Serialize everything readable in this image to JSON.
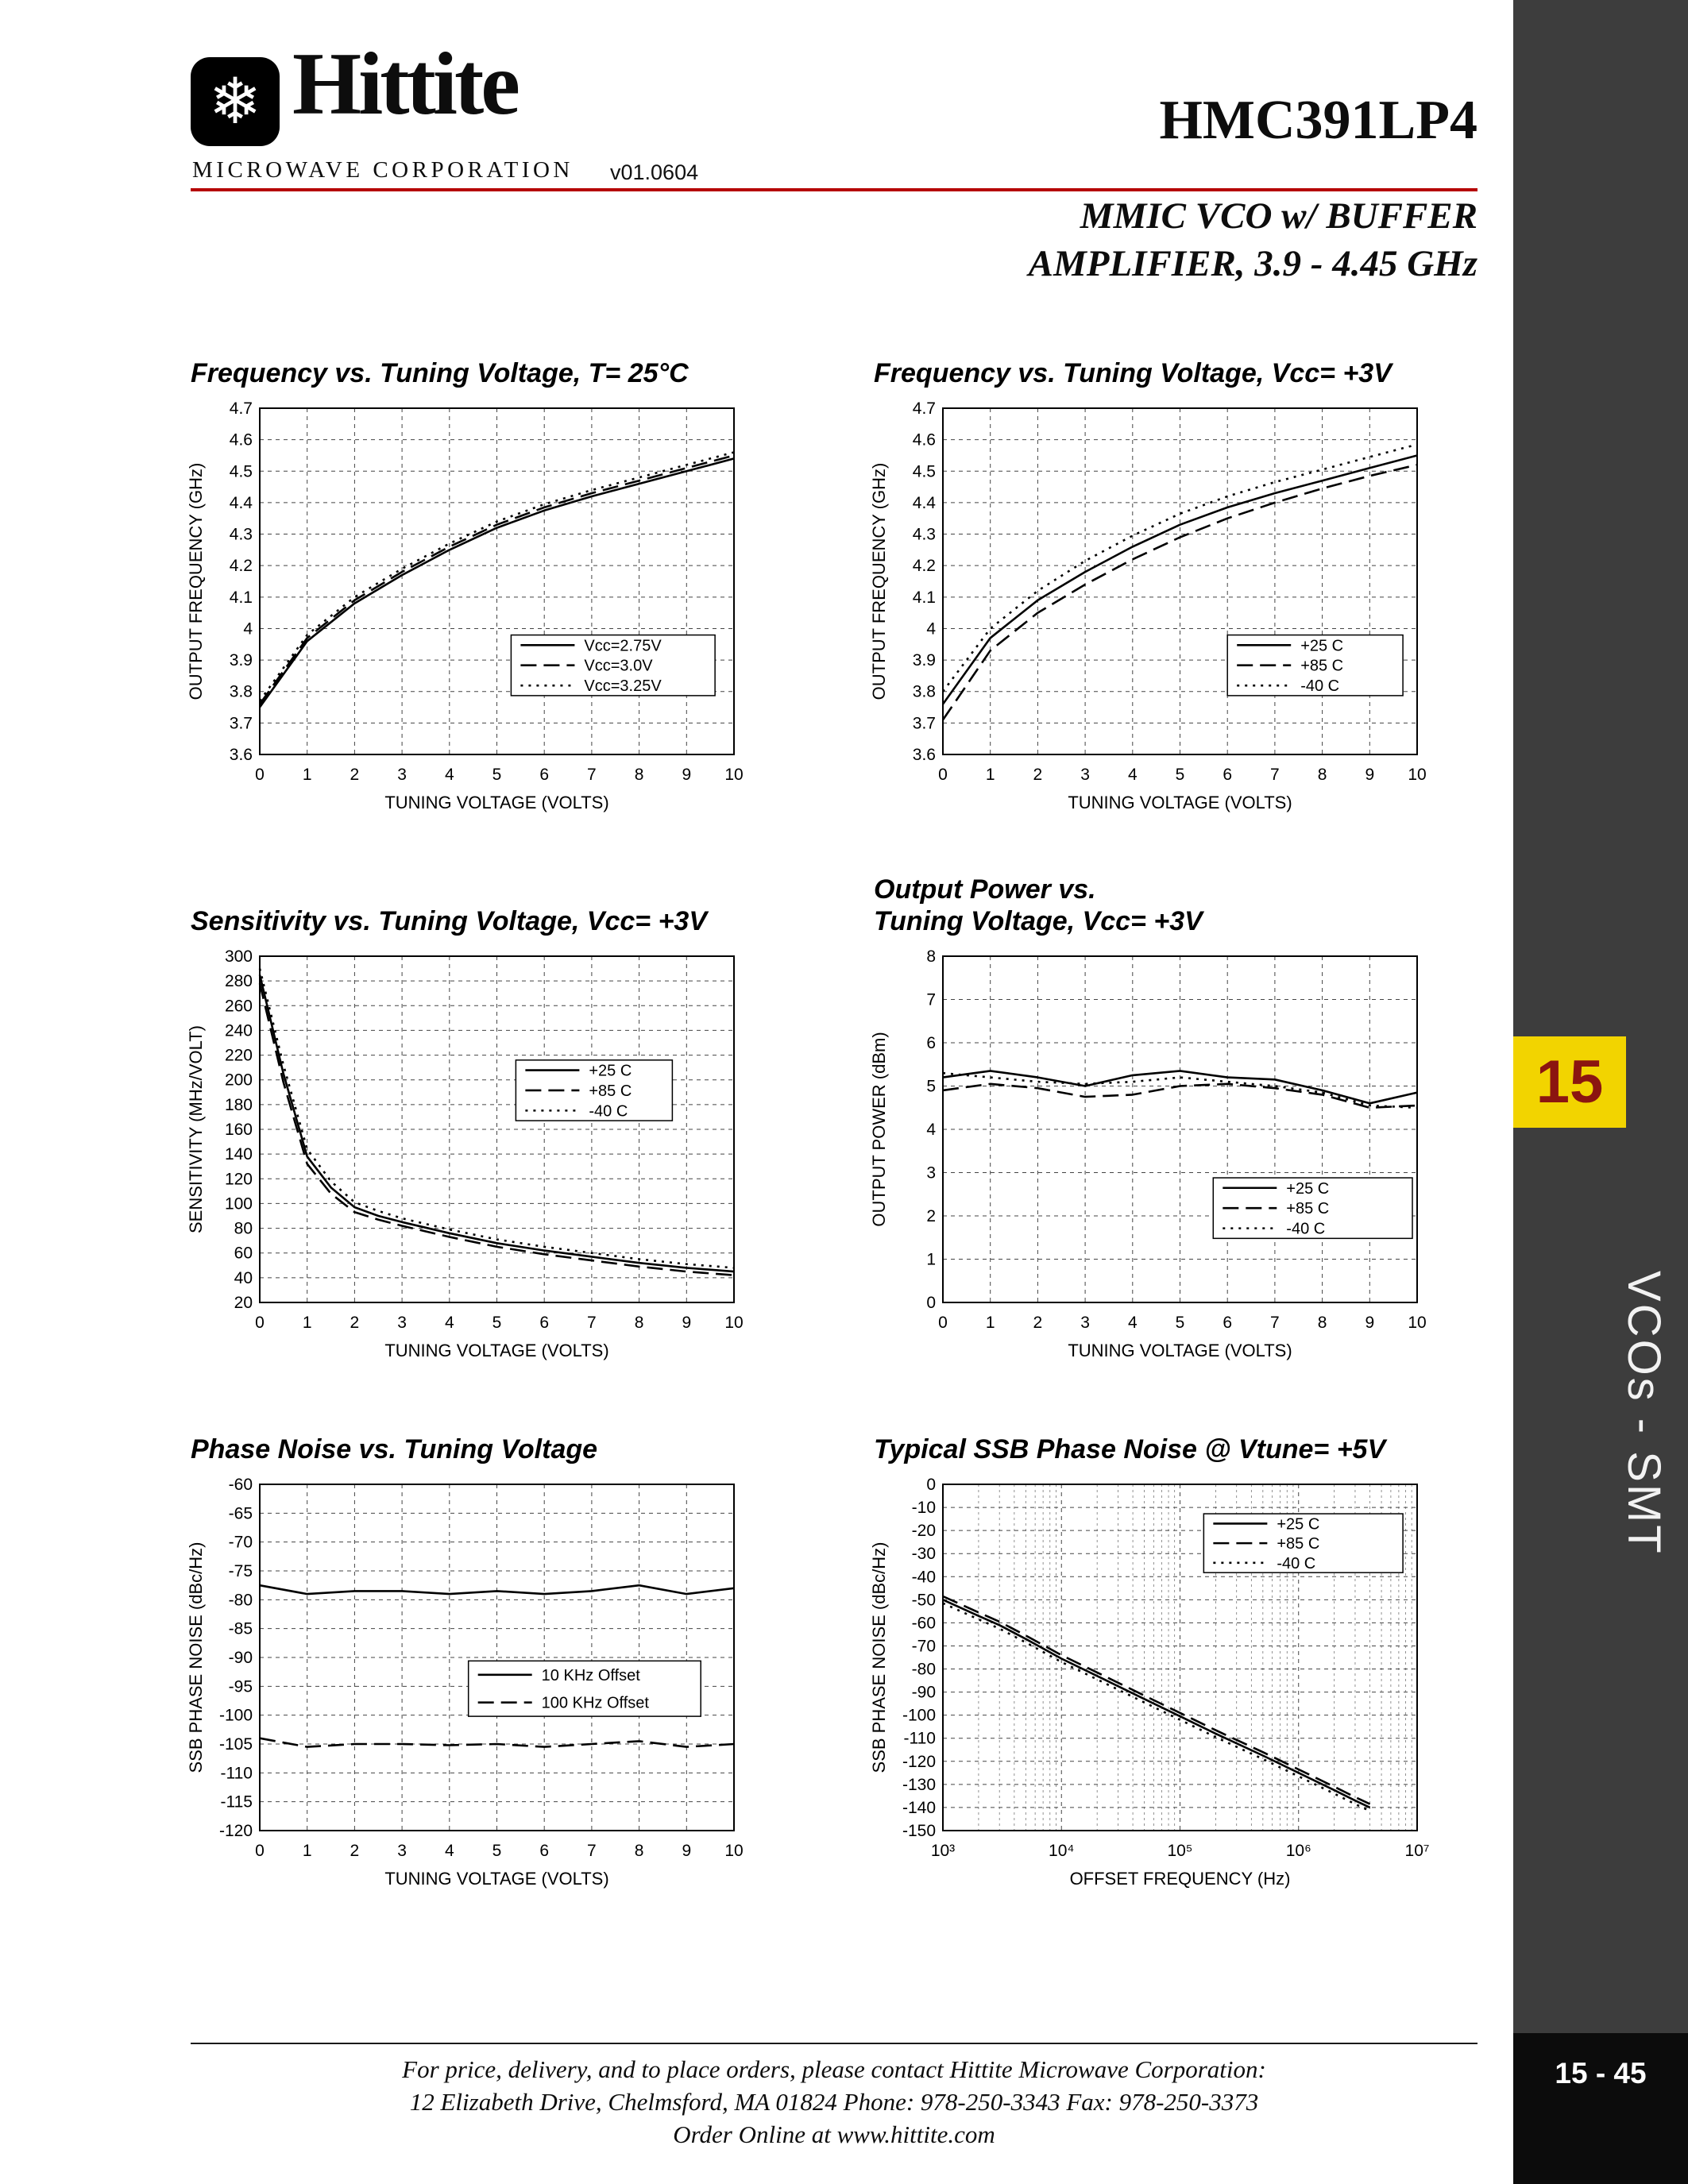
{
  "header": {
    "logo_icon": "❄",
    "logo_name": "Hittite",
    "logo_subtitle": "MICROWAVE CORPORATION",
    "version": "v01.0604",
    "part_number": "HMC391LP4",
    "subtitle": "MMIC VCO w/ BUFFER\nAMPLIFIER, 3.9 - 4.45 GHz"
  },
  "sidebar": {
    "tab_number": "15",
    "section_label": "VCOs - SMT",
    "page_number": "15 - 45"
  },
  "footer": {
    "line1": "For price, delivery, and to place orders, please contact Hittite Microwave Corporation:",
    "line2": "12 Elizabeth Drive, Chelmsford, MA 01824 Phone: 978-250-3343  Fax: 978-250-3373",
    "line3": "Order Online at www.hittite.com"
  },
  "colors": {
    "accent_red": "#b50000",
    "tab_yellow": "#f2d400",
    "tab_text": "#8b1510",
    "sidebar_gray": "#3d3d3d"
  },
  "chart_data": [
    {
      "type": "line",
      "title": "Frequency vs. Tuning Voltage, T= 25°C",
      "xlabel": "TUNING VOLTAGE (VOLTS)",
      "ylabel": "OUTPUT  FREQUENCY (GHz)",
      "xlim": [
        0,
        10
      ],
      "ylim": [
        3.6,
        4.7
      ],
      "xticks": [
        0,
        1,
        2,
        3,
        4,
        5,
        6,
        7,
        8,
        9,
        10
      ],
      "xtick_labels": [
        "0",
        "1",
        "2",
        "3",
        "4",
        "5",
        "6",
        "7",
        "8",
        "9",
        "10"
      ],
      "yticks": [
        3.6,
        3.7,
        3.8,
        3.9,
        4.0,
        4.1,
        4.2,
        4.3,
        4.4,
        4.5,
        4.6,
        4.7
      ],
      "ytick_labels": [
        "3.6",
        "3.7",
        "3.8",
        "3.9",
        "4",
        "4.1",
        "4.2",
        "4.3",
        "4.4",
        "4.5",
        "4.6",
        "4.7"
      ],
      "legend": {
        "x": 0.53,
        "y": 0.655,
        "w": 0.43,
        "h": 0.175,
        "entries": [
          {
            "label": "Vcc=2.75V",
            "dash": "solid"
          },
          {
            "label": "Vcc=3.0V",
            "dash": "dash"
          },
          {
            "label": "Vcc=3.25V",
            "dash": "dot"
          }
        ]
      },
      "series": [
        {
          "name": "Vcc=2.75V",
          "dash": "solid",
          "x": [
            0,
            1,
            2,
            3,
            4,
            5,
            6,
            7,
            8,
            9,
            10
          ],
          "y": [
            3.75,
            3.96,
            4.08,
            4.17,
            4.25,
            4.32,
            4.375,
            4.42,
            4.46,
            4.5,
            4.54
          ]
        },
        {
          "name": "Vcc=3.0V",
          "dash": "dash",
          "x": [
            0,
            1,
            2,
            3,
            4,
            5,
            6,
            7,
            8,
            9,
            10
          ],
          "y": [
            3.76,
            3.97,
            4.09,
            4.18,
            4.26,
            4.33,
            4.385,
            4.43,
            4.47,
            4.51,
            4.55
          ]
        },
        {
          "name": "Vcc=3.25V",
          "dash": "dot",
          "x": [
            0,
            1,
            2,
            3,
            4,
            5,
            6,
            7,
            8,
            9,
            10
          ],
          "y": [
            3.77,
            3.98,
            4.1,
            4.19,
            4.27,
            4.34,
            4.395,
            4.44,
            4.48,
            4.52,
            4.56
          ]
        }
      ]
    },
    {
      "type": "line",
      "title": "Frequency vs. Tuning Voltage, Vcc= +3V",
      "xlabel": "TUNING VOLTAGE (VOLTS)",
      "ylabel": "OUTPUT  FREQUENCY (GHz)",
      "xlim": [
        0,
        10
      ],
      "ylim": [
        3.6,
        4.7
      ],
      "xticks": [
        0,
        1,
        2,
        3,
        4,
        5,
        6,
        7,
        8,
        9,
        10
      ],
      "xtick_labels": [
        "0",
        "1",
        "2",
        "3",
        "4",
        "5",
        "6",
        "7",
        "8",
        "9",
        "10"
      ],
      "yticks": [
        3.6,
        3.7,
        3.8,
        3.9,
        4.0,
        4.1,
        4.2,
        4.3,
        4.4,
        4.5,
        4.6,
        4.7
      ],
      "ytick_labels": [
        "3.6",
        "3.7",
        "3.8",
        "3.9",
        "4",
        "4.1",
        "4.2",
        "4.3",
        "4.4",
        "4.5",
        "4.6",
        "4.7"
      ],
      "legend": {
        "x": 0.6,
        "y": 0.655,
        "w": 0.37,
        "h": 0.175,
        "entries": [
          {
            "label": "+25 C",
            "dash": "solid"
          },
          {
            "label": "+85 C",
            "dash": "dash"
          },
          {
            "label": "-40 C",
            "dash": "dot"
          }
        ]
      },
      "series": [
        {
          "name": "+25 C",
          "dash": "solid",
          "x": [
            0,
            1,
            2,
            3,
            4,
            5,
            6,
            7,
            8,
            9,
            10
          ],
          "y": [
            3.76,
            3.97,
            4.09,
            4.18,
            4.26,
            4.33,
            4.385,
            4.43,
            4.47,
            4.51,
            4.55
          ]
        },
        {
          "name": "+85 C",
          "dash": "dash",
          "x": [
            0,
            1,
            2,
            3,
            4,
            5,
            6,
            7,
            8,
            9,
            10
          ],
          "y": [
            3.71,
            3.93,
            4.05,
            4.14,
            4.22,
            4.29,
            4.35,
            4.4,
            4.445,
            4.485,
            4.52
          ]
        },
        {
          "name": "-40 C",
          "dash": "dot",
          "x": [
            0,
            1,
            2,
            3,
            4,
            5,
            6,
            7,
            8,
            9,
            10
          ],
          "y": [
            3.8,
            4.0,
            4.12,
            4.215,
            4.295,
            4.365,
            4.42,
            4.465,
            4.505,
            4.545,
            4.585
          ]
        }
      ]
    },
    {
      "type": "line",
      "title": "Sensitivity vs. Tuning Voltage, Vcc= +3V",
      "xlabel": "TUNING VOLTAGE (VOLTS)",
      "ylabel": "SENSITIVITY (MHz/VOLT)",
      "xlim": [
        0,
        10
      ],
      "ylim": [
        20,
        300
      ],
      "xticks": [
        0,
        1,
        2,
        3,
        4,
        5,
        6,
        7,
        8,
        9,
        10
      ],
      "xtick_labels": [
        "0",
        "1",
        "2",
        "3",
        "4",
        "5",
        "6",
        "7",
        "8",
        "9",
        "10"
      ],
      "yticks": [
        20,
        40,
        60,
        80,
        100,
        120,
        140,
        160,
        180,
        200,
        220,
        240,
        260,
        280,
        300
      ],
      "ytick_labels": [
        "20",
        "40",
        "60",
        "80",
        "100",
        "120",
        "140",
        "160",
        "180",
        "200",
        "220",
        "240",
        "260",
        "280",
        "300"
      ],
      "legend": {
        "x": 0.54,
        "y": 0.3,
        "w": 0.33,
        "h": 0.175,
        "entries": [
          {
            "label": "+25 C",
            "dash": "solid"
          },
          {
            "label": "+85 C",
            "dash": "dash"
          },
          {
            "label": "-40 C",
            "dash": "dot"
          }
        ]
      },
      "series": [
        {
          "name": "+25 C",
          "dash": "solid",
          "x": [
            0,
            0.5,
            1,
            1.5,
            2,
            2.5,
            3,
            4,
            5,
            6,
            7,
            8,
            9,
            10
          ],
          "y": [
            285,
            205,
            138,
            113,
            97,
            90,
            85,
            76,
            68,
            62,
            57,
            52,
            48,
            45
          ]
        },
        {
          "name": "+85 C",
          "dash": "dash",
          "x": [
            0,
            0.5,
            1,
            1.5,
            2,
            2.5,
            3,
            4,
            5,
            6,
            7,
            8,
            9,
            10
          ],
          "y": [
            278,
            198,
            132,
            108,
            93,
            87,
            82,
            73,
            65,
            59,
            54,
            49,
            45,
            42
          ]
        },
        {
          "name": "-40 C",
          "dash": "dot",
          "x": [
            0,
            0.5,
            1,
            1.5,
            2,
            2.5,
            3,
            4,
            5,
            6,
            7,
            8,
            9,
            10
          ],
          "y": [
            290,
            212,
            144,
            118,
            101,
            94,
            88,
            79,
            71,
            65,
            60,
            55,
            51,
            48
          ]
        }
      ]
    },
    {
      "type": "line",
      "title": "Output Power vs.\nTuning Voltage, Vcc= +3V",
      "xlabel": "TUNING VOLTAGE (VOLTS)",
      "ylabel": "OUTPUT POWER (dBm)",
      "xlim": [
        0,
        10
      ],
      "ylim": [
        0,
        8
      ],
      "xticks": [
        0,
        1,
        2,
        3,
        4,
        5,
        6,
        7,
        8,
        9,
        10
      ],
      "xtick_labels": [
        "0",
        "1",
        "2",
        "3",
        "4",
        "5",
        "6",
        "7",
        "8",
        "9",
        "10"
      ],
      "yticks": [
        0,
        1,
        2,
        3,
        4,
        5,
        6,
        7,
        8
      ],
      "ytick_labels": [
        "0",
        "1",
        "2",
        "3",
        "4",
        "5",
        "6",
        "7",
        "8"
      ],
      "legend": {
        "x": 0.57,
        "y": 0.64,
        "w": 0.42,
        "h": 0.175,
        "entries": [
          {
            "label": "+25 C",
            "dash": "solid"
          },
          {
            "label": "+85 C",
            "dash": "dash"
          },
          {
            "label": "-40 C",
            "dash": "dot"
          }
        ]
      },
      "series": [
        {
          "name": "+25 C",
          "dash": "solid",
          "x": [
            0,
            1,
            2,
            3,
            4,
            5,
            6,
            7,
            8,
            9,
            10
          ],
          "y": [
            5.2,
            5.35,
            5.2,
            5.0,
            5.25,
            5.35,
            5.2,
            5.15,
            4.9,
            4.6,
            4.85
          ]
        },
        {
          "name": "+85 C",
          "dash": "dash",
          "x": [
            0,
            1,
            2,
            3,
            4,
            5,
            6,
            7,
            8,
            9,
            10
          ],
          "y": [
            4.9,
            5.05,
            4.95,
            4.75,
            4.8,
            5.0,
            5.05,
            4.95,
            4.8,
            4.5,
            4.55
          ]
        },
        {
          "name": "-40 C",
          "dash": "dot",
          "x": [
            0,
            1,
            2,
            3,
            4,
            5,
            6,
            7,
            8,
            9,
            10
          ],
          "y": [
            5.3,
            5.2,
            5.1,
            5.05,
            5.1,
            5.2,
            5.1,
            5.0,
            4.85,
            4.55,
            4.5
          ]
        }
      ]
    },
    {
      "type": "line",
      "title": "Phase Noise vs. Tuning Voltage",
      "xlabel": "TUNING VOLTAGE (VOLTS)",
      "ylabel": "SSB PHASE NOISE (dBc/Hz)",
      "xlim": [
        0,
        10
      ],
      "ylim": [
        -120,
        -60
      ],
      "xticks": [
        0,
        1,
        2,
        3,
        4,
        5,
        6,
        7,
        8,
        9,
        10
      ],
      "xtick_labels": [
        "0",
        "1",
        "2",
        "3",
        "4",
        "5",
        "6",
        "7",
        "8",
        "9",
        "10"
      ],
      "yticks": [
        -120,
        -115,
        -110,
        -105,
        -100,
        -95,
        -90,
        -85,
        -80,
        -75,
        -70,
        -65,
        -60
      ],
      "ytick_labels": [
        "-120",
        "-115",
        "-110",
        "-105",
        "-100",
        "-95",
        "-90",
        "-85",
        "-80",
        "-75",
        "-70",
        "-65",
        "-60"
      ],
      "legend": {
        "x": 0.44,
        "y": 0.51,
        "w": 0.49,
        "h": 0.16,
        "entries": [
          {
            "label": "10 KHz Offset",
            "dash": "solid"
          },
          {
            "label": "100 KHz Offset",
            "dash": "dash"
          }
        ]
      },
      "series": [
        {
          "name": "10 KHz Offset",
          "dash": "solid",
          "x": [
            0,
            1,
            2,
            3,
            4,
            5,
            6,
            7,
            8,
            9,
            10
          ],
          "y": [
            -77.5,
            -79,
            -78.5,
            -78.5,
            -79,
            -78.5,
            -79,
            -78.5,
            -77.5,
            -79,
            -78
          ]
        },
        {
          "name": "100 KHz Offset",
          "dash": "dash",
          "x": [
            0,
            1,
            2,
            3,
            4,
            5,
            6,
            7,
            8,
            9,
            10
          ],
          "y": [
            -104,
            -105.5,
            -105,
            -105,
            -105.2,
            -105,
            -105.5,
            -105,
            -104.5,
            -105.5,
            -105
          ]
        }
      ]
    },
    {
      "type": "line",
      "title": "Typical SSB Phase Noise @ Vtune= +5V",
      "xlabel": "OFFSET FREQUENCY (Hz)",
      "ylabel": "SSB PHASE NOISE (dBc/Hz)",
      "xlog": true,
      "xlim": [
        1000,
        10000000
      ],
      "ylim": [
        -150,
        0
      ],
      "xticks": [
        1000,
        10000,
        100000,
        1000000,
        10000000
      ],
      "xtick_labels": [
        "10³",
        "10⁴",
        "10⁵",
        "10⁶",
        "10⁷"
      ],
      "yticks": [
        -150,
        -140,
        -130,
        -120,
        -110,
        -100,
        -90,
        -80,
        -70,
        -60,
        -50,
        -40,
        -30,
        -20,
        -10,
        0
      ],
      "ytick_labels": [
        "-150",
        "-140",
        "-130",
        "-120",
        "-110",
        "-100",
        "-90",
        "-80",
        "-70",
        "-60",
        "-50",
        "-40",
        "-30",
        "-20",
        "-10",
        "0"
      ],
      "legend": {
        "x": 0.55,
        "y": 0.085,
        "w": 0.42,
        "h": 0.17,
        "entries": [
          {
            "label": "+25 C",
            "dash": "solid"
          },
          {
            "label": "+85 C",
            "dash": "dash"
          },
          {
            "label": "-40 C",
            "dash": "dot"
          }
        ]
      },
      "series": [
        {
          "name": "+25 C",
          "dash": "solid",
          "x": [
            1000,
            2000,
            3000,
            5000,
            10000,
            20000,
            50000,
            100000,
            200000,
            500000,
            1000000,
            2000000,
            3000000,
            4000000
          ],
          "y": [
            -50,
            -57,
            -61,
            -67,
            -75.5,
            -83,
            -93,
            -100.5,
            -108,
            -117.5,
            -125,
            -132.5,
            -137,
            -140
          ]
        },
        {
          "name": "+85 C",
          "dash": "dash",
          "x": [
            1000,
            2000,
            3000,
            5000,
            10000,
            20000,
            50000,
            100000,
            200000,
            500000,
            1000000,
            2000000,
            3000000,
            4000000
          ],
          "y": [
            -48.5,
            -55.5,
            -59.5,
            -65.5,
            -74,
            -81.5,
            -91.5,
            -99,
            -106.5,
            -116,
            -123.5,
            -131,
            -135.5,
            -138.5
          ]
        },
        {
          "name": "-40 C",
          "dash": "dot",
          "x": [
            1000,
            2000,
            3000,
            5000,
            10000,
            20000,
            50000,
            100000,
            200000,
            500000,
            1000000,
            2000000,
            3000000,
            4000000
          ],
          "y": [
            -51.5,
            -58.5,
            -62.5,
            -68.5,
            -77,
            -84.5,
            -94.5,
            -102,
            -109.5,
            -119,
            -126.5,
            -134,
            -138.5,
            -141.5
          ]
        }
      ]
    }
  ]
}
